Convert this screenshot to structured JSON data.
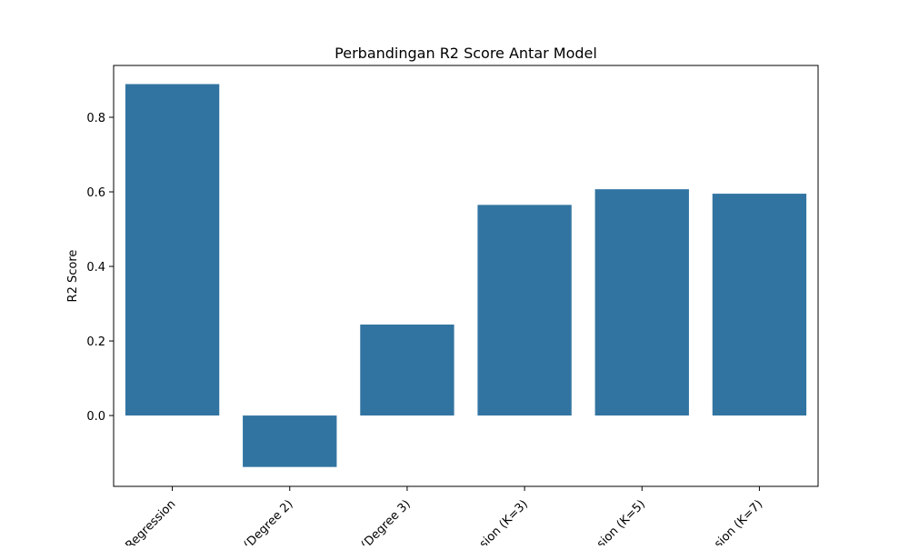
{
  "chart_data": {
    "type": "bar",
    "title": "Perbandingan R2 Score Antar Model",
    "xlabel": "",
    "ylabel": "R2 Score",
    "categories": [
      "Regression",
      "(Degree 2)",
      "(Degree 3)",
      "sion (K=3)",
      "sion (K=5)",
      "sion (K=7)"
    ],
    "values": [
      0.889,
      -0.138,
      0.244,
      0.565,
      0.607,
      0.595
    ],
    "ylim": [
      -0.19,
      0.939
    ],
    "yticks": [
      0.0,
      0.2,
      0.4,
      0.6,
      0.8
    ],
    "ytick_labels": [
      "0.0",
      "0.2",
      "0.4",
      "0.6",
      "0.8"
    ],
    "bar_color": "#3274a1",
    "grid": false,
    "legend": "none"
  }
}
